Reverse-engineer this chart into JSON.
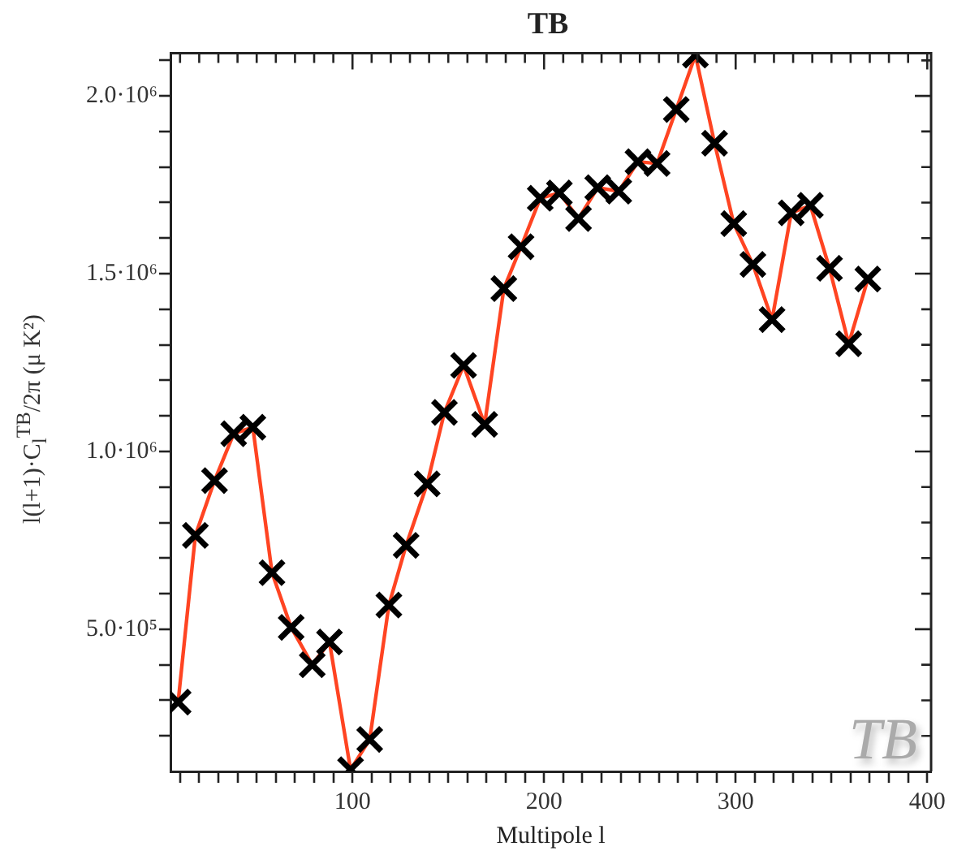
{
  "chart_data": {
    "type": "line",
    "title": "TB",
    "xlabel": "Multipole l",
    "ylabel": "l(l+1)·C$_{l}$$^{TB}$/2π (μ K²)",
    "annotations": [
      "TB"
    ],
    "x": [
      9,
      18,
      28,
      38,
      48,
      58,
      68,
      79,
      88,
      99,
      109,
      119,
      128,
      139,
      148,
      158,
      169,
      179,
      188,
      198,
      208,
      218,
      228,
      239,
      249,
      259,
      269,
      279,
      289,
      299,
      309,
      319,
      329,
      339,
      349,
      359,
      369
    ],
    "series": [
      {
        "color": "#ff4422",
        "colors": [
          "#000000",
          "#000000",
          "#000000",
          "#000000",
          "#000000",
          "#000000",
          "#000000",
          "#000000",
          "#000000",
          "#000000",
          "#000000",
          "#000000",
          "#000000",
          "#000000",
          "#000000",
          "#000000",
          "#000000",
          "#000000",
          "#000000",
          "#000000",
          "#000000",
          "#000000",
          "#000000",
          "#000000",
          "#000000",
          "#000000",
          "#000000",
          "#000000",
          "#000000",
          "#000000",
          "#000000",
          "#000000",
          "#000000",
          "#000000",
          "#000000",
          "#000000",
          "#000000"
        ],
        "values": [
          295000,
          764000,
          918000,
          1050000,
          1068000,
          659000,
          505000,
          400000,
          464000,
          105000,
          190000,
          568000,
          736000,
          909000,
          1110000,
          1242000,
          1076000,
          1458000,
          1576000,
          1712000,
          1727000,
          1655000,
          1742000,
          1732000,
          1815000,
          1810000,
          1962000,
          2115000,
          1867000,
          1641000,
          1526000,
          1371000,
          1671000,
          1692000,
          1515000,
          1303000,
          1485000
        ]
      }
    ],
    "marker": "cross",
    "line_style": "solid",
    "grid": false,
    "legend": false,
    "xlim": [
      5,
      402
    ],
    "ylim": [
      100000,
      2120000
    ],
    "xticks": [
      {
        "value": 10,
        "label": null
      },
      {
        "value": 20,
        "label": null
      },
      {
        "value": 30,
        "label": null
      },
      {
        "value": 40,
        "label": null
      },
      {
        "value": 50,
        "label": null
      },
      {
        "value": 60,
        "label": null
      },
      {
        "value": 70,
        "label": null
      },
      {
        "value": 80,
        "label": null
      },
      {
        "value": 90,
        "label": null
      },
      100,
      {
        "value": 110,
        "label": null
      },
      {
        "value": 120,
        "label": null
      },
      {
        "value": 130,
        "label": null
      },
      {
        "value": 140,
        "label": null
      },
      {
        "value": 150,
        "label": null
      },
      {
        "value": 160,
        "label": null
      },
      {
        "value": 170,
        "label": null
      },
      {
        "value": 180,
        "label": null
      },
      {
        "value": 190,
        "label": null
      },
      200,
      {
        "value": 210,
        "label": null
      },
      {
        "value": 220,
        "label": null
      },
      {
        "value": 230,
        "label": null
      },
      {
        "value": 240,
        "label": null
      },
      {
        "value": 250,
        "label": null
      },
      {
        "value": 260,
        "label": null
      },
      {
        "value": 270,
        "label": null
      },
      {
        "value": 280,
        "label": null
      },
      {
        "value": 290,
        "label": null
      },
      300,
      {
        "value": 310,
        "label": null
      },
      {
        "value": 320,
        "label": null
      },
      {
        "value": 330,
        "label": null
      },
      {
        "value": 340,
        "label": null
      },
      {
        "value": 350,
        "label": null
      },
      {
        "value": 360,
        "label": null
      },
      {
        "value": 370,
        "label": null
      },
      {
        "value": 380,
        "label": null
      },
      {
        "value": 390,
        "label": null
      },
      400
    ],
    "yticks": [
      {
        "value": 200000,
        "label": null
      },
      {
        "value": 300000,
        "label": null
      },
      {
        "value": 400000,
        "label": null
      },
      {
        "value": 500000,
        "label": "5.0·10⁵"
      },
      {
        "value": 600000,
        "label": null
      },
      {
        "value": 700000,
        "label": null
      },
      {
        "value": 800000,
        "label": null
      },
      {
        "value": 900000,
        "label": null
      },
      {
        "value": 1000000,
        "label": "1.0·10⁶"
      },
      {
        "value": 1100000,
        "label": null
      },
      {
        "value": 1200000,
        "label": null
      },
      {
        "value": 1300000,
        "label": null
      },
      {
        "value": 1400000,
        "label": null
      },
      {
        "value": 1500000,
        "label": "1.5·10⁶"
      },
      {
        "value": 1600000,
        "label": null
      },
      {
        "value": 1700000,
        "label": null
      },
      {
        "value": 1800000,
        "label": null
      },
      {
        "value": 1900000,
        "label": null
      },
      {
        "value": 2000000,
        "label": "2.0·10⁶"
      },
      {
        "value": 2100000,
        "label": null
      }
    ]
  }
}
